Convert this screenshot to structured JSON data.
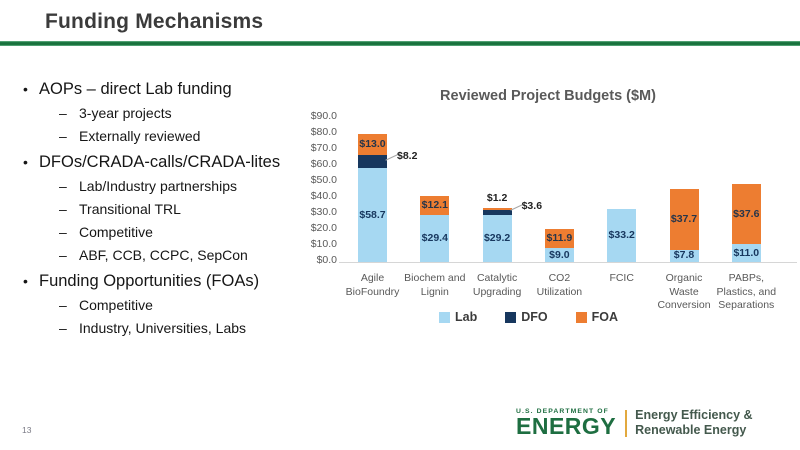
{
  "header": {
    "title": "Funding Mechanisms"
  },
  "left_panel": {
    "items": [
      {
        "label": "AOPs – direct Lab funding",
        "subitems": [
          "3-year projects",
          "Externally reviewed"
        ]
      },
      {
        "label": "DFOs/CRADA-calls/CRADA-lites",
        "subitems": [
          "Lab/Industry partnerships",
          "Transitional TRL",
          "Competitive",
          "ABF, CCB, CCPC, SepCon"
        ]
      },
      {
        "label": "Funding Opportunities (FOAs)",
        "subitems": [
          "Competitive",
          "Industry, Universities, Labs"
        ]
      }
    ]
  },
  "chart_data": {
    "type": "bar",
    "stacked": true,
    "title": "Reviewed Project Budgets ($M)",
    "categories": [
      "Agile BioFoundry",
      "Biochem and Lignin",
      "Catalytic Upgrading",
      "CO2 Utilization",
      "FCIC",
      "Organic Waste Conversion",
      "PABPs, Plastics, and Separations"
    ],
    "category_label_lines": [
      [
        "Agile",
        "BioFoundry"
      ],
      [
        "Biochem and",
        "Lignin"
      ],
      [
        "Catalytic",
        "Upgrading"
      ],
      [
        "CO2",
        "Utilization"
      ],
      [
        "FCIC"
      ],
      [
        "Organic",
        "Waste",
        "Conversion"
      ],
      [
        "PABPs,",
        "Plastics, and",
        "Separations"
      ]
    ],
    "series": [
      {
        "name": "Lab",
        "color": "#A6D8F2",
        "values": [
          58.7,
          29.4,
          29.2,
          9.0,
          33.2,
          7.8,
          11.0
        ]
      },
      {
        "name": "DFO",
        "color": "#17375E",
        "values": [
          8.2,
          0,
          3.6,
          0,
          0,
          0,
          0
        ]
      },
      {
        "name": "FOA",
        "color": "#ED7D31",
        "values": [
          13.0,
          12.1,
          1.2,
          11.9,
          0,
          37.7,
          37.6
        ]
      }
    ],
    "ylim": [
      0,
      90
    ],
    "ytick_step": 10,
    "y_ticks": [
      "$90.0",
      "$80.0",
      "$70.0",
      "$60.0",
      "$50.0",
      "$40.0",
      "$30.0",
      "$20.0",
      "$10.0",
      "$0.0"
    ],
    "gridlines": false,
    "legend": [
      "Lab",
      "DFO",
      "FOA"
    ],
    "legend_position": "bottom",
    "data_labels": {
      "inside_format": "$%.1f",
      "callouts": [
        {
          "category": "Agile BioFoundry",
          "series": "DFO",
          "text": "$8.2"
        },
        {
          "category": "Catalytic Upgrading",
          "series": "DFO",
          "text": "$3.6"
        }
      ],
      "above": [
        {
          "category": "Catalytic Upgrading",
          "series": "FOA",
          "text": "$1.2"
        }
      ]
    }
  },
  "footer": {
    "page_number": "13",
    "logo": {
      "dept_line": "U.S. DEPARTMENT OF",
      "energy_word": "ENERGY",
      "right_line1": "Energy Efficiency &",
      "right_line2": "Renewable Energy"
    }
  },
  "colors": {
    "title_rule_green": "#17713C",
    "lab_blue": "#A6D8F2",
    "dfo_navy": "#17375E",
    "foa_orange": "#ED7D31",
    "axis_text_gray": "#595959",
    "doe_green": "#1E6E41",
    "gold_divider": "#E2A93F"
  }
}
